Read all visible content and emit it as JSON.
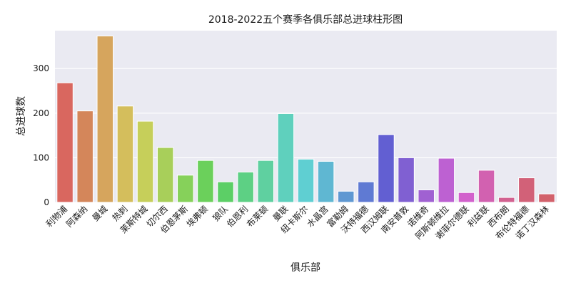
{
  "chart_data": {
    "type": "bar",
    "title": "2018-2022五个赛季各俱乐部总进球柱形图",
    "xlabel": "俱乐部",
    "ylabel": "总进球数",
    "ylim": [
      0,
      385
    ],
    "yticks": [
      0,
      100,
      200,
      300
    ],
    "grid": true,
    "categories": [
      "利物浦",
      "阿森纳",
      "曼城",
      "热刺",
      "莱斯特城",
      "切尔西",
      "伯恩茅斯",
      "埃弗顿",
      "狼队",
      "伯恩利",
      "布莱顿",
      "曼联",
      "纽卡斯尔",
      "水晶宫",
      "富勒姆",
      "沃特福德",
      "西汉姆联",
      "南安普敦",
      "诺维奇",
      "阿斯顿维拉",
      "谢菲尔德联",
      "利兹联",
      "西布朗",
      "布伦特福德",
      "诺丁汉森林"
    ],
    "values": [
      268,
      205,
      373,
      216,
      182,
      123,
      61,
      94,
      46,
      68,
      94,
      199,
      97,
      92,
      25,
      46,
      152,
      100,
      28,
      99,
      22,
      72,
      11,
      55,
      19
    ],
    "colors": [
      "#d9675f",
      "#d4865a",
      "#d6a55d",
      "#d4be5c",
      "#c6cf5a",
      "#a8cf5a",
      "#86d15a",
      "#6bd05b",
      "#5ccf66",
      "#5dd084",
      "#5fd0a0",
      "#5fd0bd",
      "#5fcfd2",
      "#5fb7d2",
      "#5f98d2",
      "#5f7ad3",
      "#625fd2",
      "#8060d2",
      "#a061d2",
      "#bd61d2",
      "#d261cc",
      "#d261b0",
      "#d26190",
      "#d26178",
      "#d2616b"
    ]
  }
}
